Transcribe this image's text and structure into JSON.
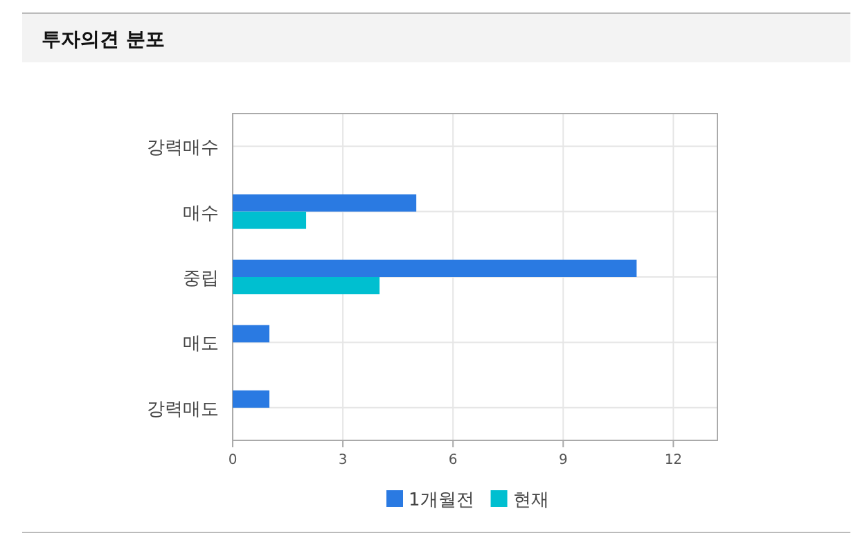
{
  "chart_data": {
    "type": "bar",
    "orientation": "horizontal",
    "title": "투자의견 분포",
    "categories": [
      "강력매수",
      "매수",
      "중립",
      "매도",
      "강력매도"
    ],
    "series": [
      {
        "name": "1개월전",
        "color": "#2a7ae2",
        "values": [
          0,
          5,
          11,
          1,
          1
        ]
      },
      {
        "name": "현재",
        "color": "#00bfd0",
        "values": [
          0,
          2,
          4,
          0,
          0
        ]
      }
    ],
    "xlim": [
      0,
      13.2
    ],
    "xticks": [
      0,
      3,
      6,
      9,
      12
    ],
    "grid": true,
    "legend": "bottom"
  }
}
